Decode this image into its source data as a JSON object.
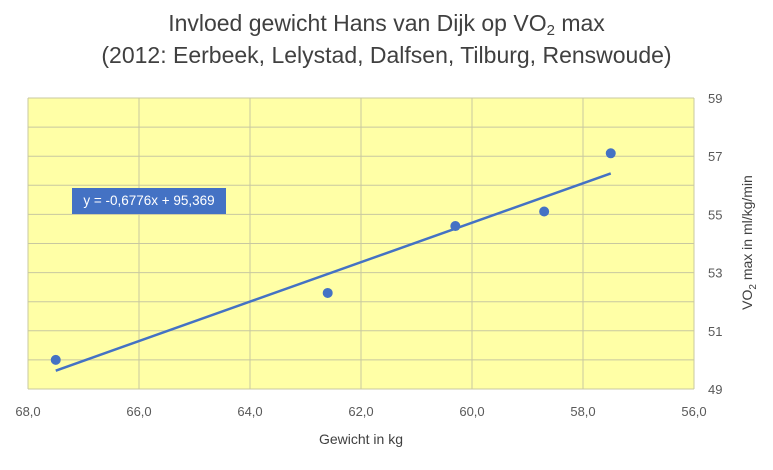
{
  "chart_data": {
    "type": "scatter",
    "title": {
      "line1_prefix": "Invloed gewicht Hans van Dijk op VO",
      "line1_sub": "2",
      "line1_suffix": " max",
      "line2": "(2012: Eerbeek, Lelystad, Dalfsen, Tilburg, Renswoude)"
    },
    "xlabel": "Gewicht in kg",
    "ylabel": "VO2 max in ml/kg/min",
    "x_axis_reversed": true,
    "xlim": [
      56,
      68
    ],
    "ylim": [
      49,
      59
    ],
    "x_ticks": [
      "68,0",
      "66,0",
      "64,0",
      "62,0",
      "60,0",
      "58,0",
      "56,0"
    ],
    "y_ticks": [
      "59",
      "57",
      "55",
      "53",
      "51",
      "49"
    ],
    "y_axis_position": "right",
    "grid": true,
    "plot_background": "#ffffa6",
    "grid_color": "#c8c8a0",
    "series": [
      {
        "color": "#4472c4",
        "points": [
          {
            "x": 67.5,
            "y": 50.0
          },
          {
            "x": 62.6,
            "y": 52.3
          },
          {
            "x": 60.3,
            "y": 54.6
          },
          {
            "x": 58.7,
            "y": 55.1
          },
          {
            "x": 57.5,
            "y": 57.1
          }
        ]
      }
    ],
    "trendline": {
      "type": "linear",
      "slope": -0.6776,
      "intercept": 95.369,
      "x_start": 67.5,
      "x_end": 57.5,
      "color": "#4472c4",
      "label": "y = -0,6776x + 95,369"
    }
  }
}
